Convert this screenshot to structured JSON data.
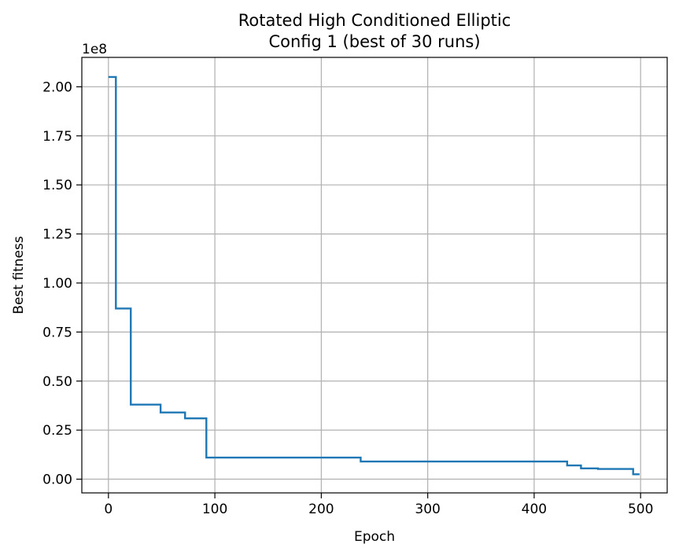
{
  "chart_data": {
    "type": "line",
    "title": [
      "Rotated High Conditioned Elliptic",
      "Config 1  (best of 30 runs)"
    ],
    "xlabel": "Epoch",
    "ylabel": "Best fitness",
    "y_offset_label": "1e8",
    "xlim": [
      -25,
      525
    ],
    "ylim": [
      -7000000,
      215000000
    ],
    "xticks": [
      0,
      100,
      200,
      300,
      400,
      500
    ],
    "xtick_labels": [
      "0",
      "100",
      "200",
      "300",
      "400",
      "500"
    ],
    "yticks": [
      0,
      25000000,
      50000000,
      75000000,
      100000000,
      125000000,
      150000000,
      175000000,
      200000000
    ],
    "ytick_labels": [
      "0.00",
      "0.25",
      "0.50",
      "0.75",
      "1.00",
      "1.25",
      "1.50",
      "1.75",
      "2.00"
    ],
    "grid": true,
    "series": [
      {
        "color": "#1f77b4",
        "step": true,
        "x": [
          0,
          7,
          21,
          49,
          72,
          92,
          237,
          431,
          444,
          460,
          493,
          499
        ],
        "values": [
          205000000,
          87000000,
          38000000,
          34000000,
          31000000,
          11000000,
          9000000,
          7000000,
          5500000,
          5200000,
          2500000,
          2500000
        ]
      }
    ]
  }
}
